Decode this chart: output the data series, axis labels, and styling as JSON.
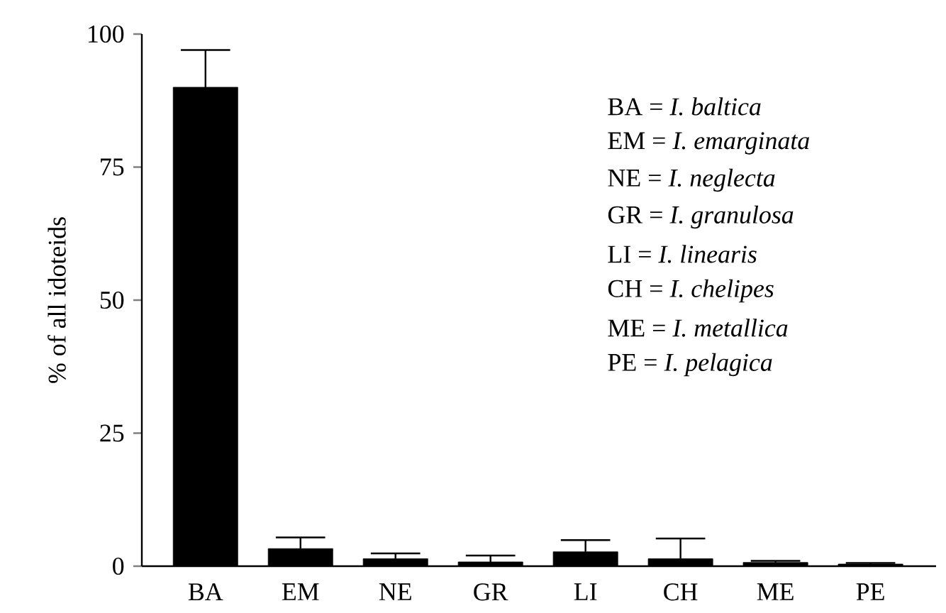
{
  "chart_data": {
    "type": "bar",
    "ylabel": "% of all idoteids",
    "categories": [
      "BA",
      "EM",
      "NE",
      "GR",
      "LI",
      "CH",
      "ME",
      "PE"
    ],
    "values": [
      90,
      3.3,
      1.4,
      0.8,
      2.7,
      1.4,
      0.7,
      0.4
    ],
    "errors": [
      [
        90,
        97
      ],
      [
        3.3,
        5.4
      ],
      [
        1.4,
        2.4
      ],
      [
        0.8,
        2.0
      ],
      [
        2.7,
        4.9
      ],
      [
        1.4,
        5.2
      ],
      [
        0.7,
        1.0
      ],
      [
        0.4,
        0.6
      ]
    ],
    "color": "#000000",
    "ylim": [
      0,
      100
    ],
    "yticks": [
      0,
      25,
      50,
      75,
      100
    ],
    "grid": false,
    "annotations": [
      "BA = *I. baltica*",
      "EM = *I. emarginata*",
      "NE = *I. neglecta*",
      "GR = *I. granulosa*",
      "LI = *I. linearis*",
      "CH = *I. chelipes*",
      "ME = *I. metallica*",
      "PE = *I. pelagica*"
    ]
  }
}
